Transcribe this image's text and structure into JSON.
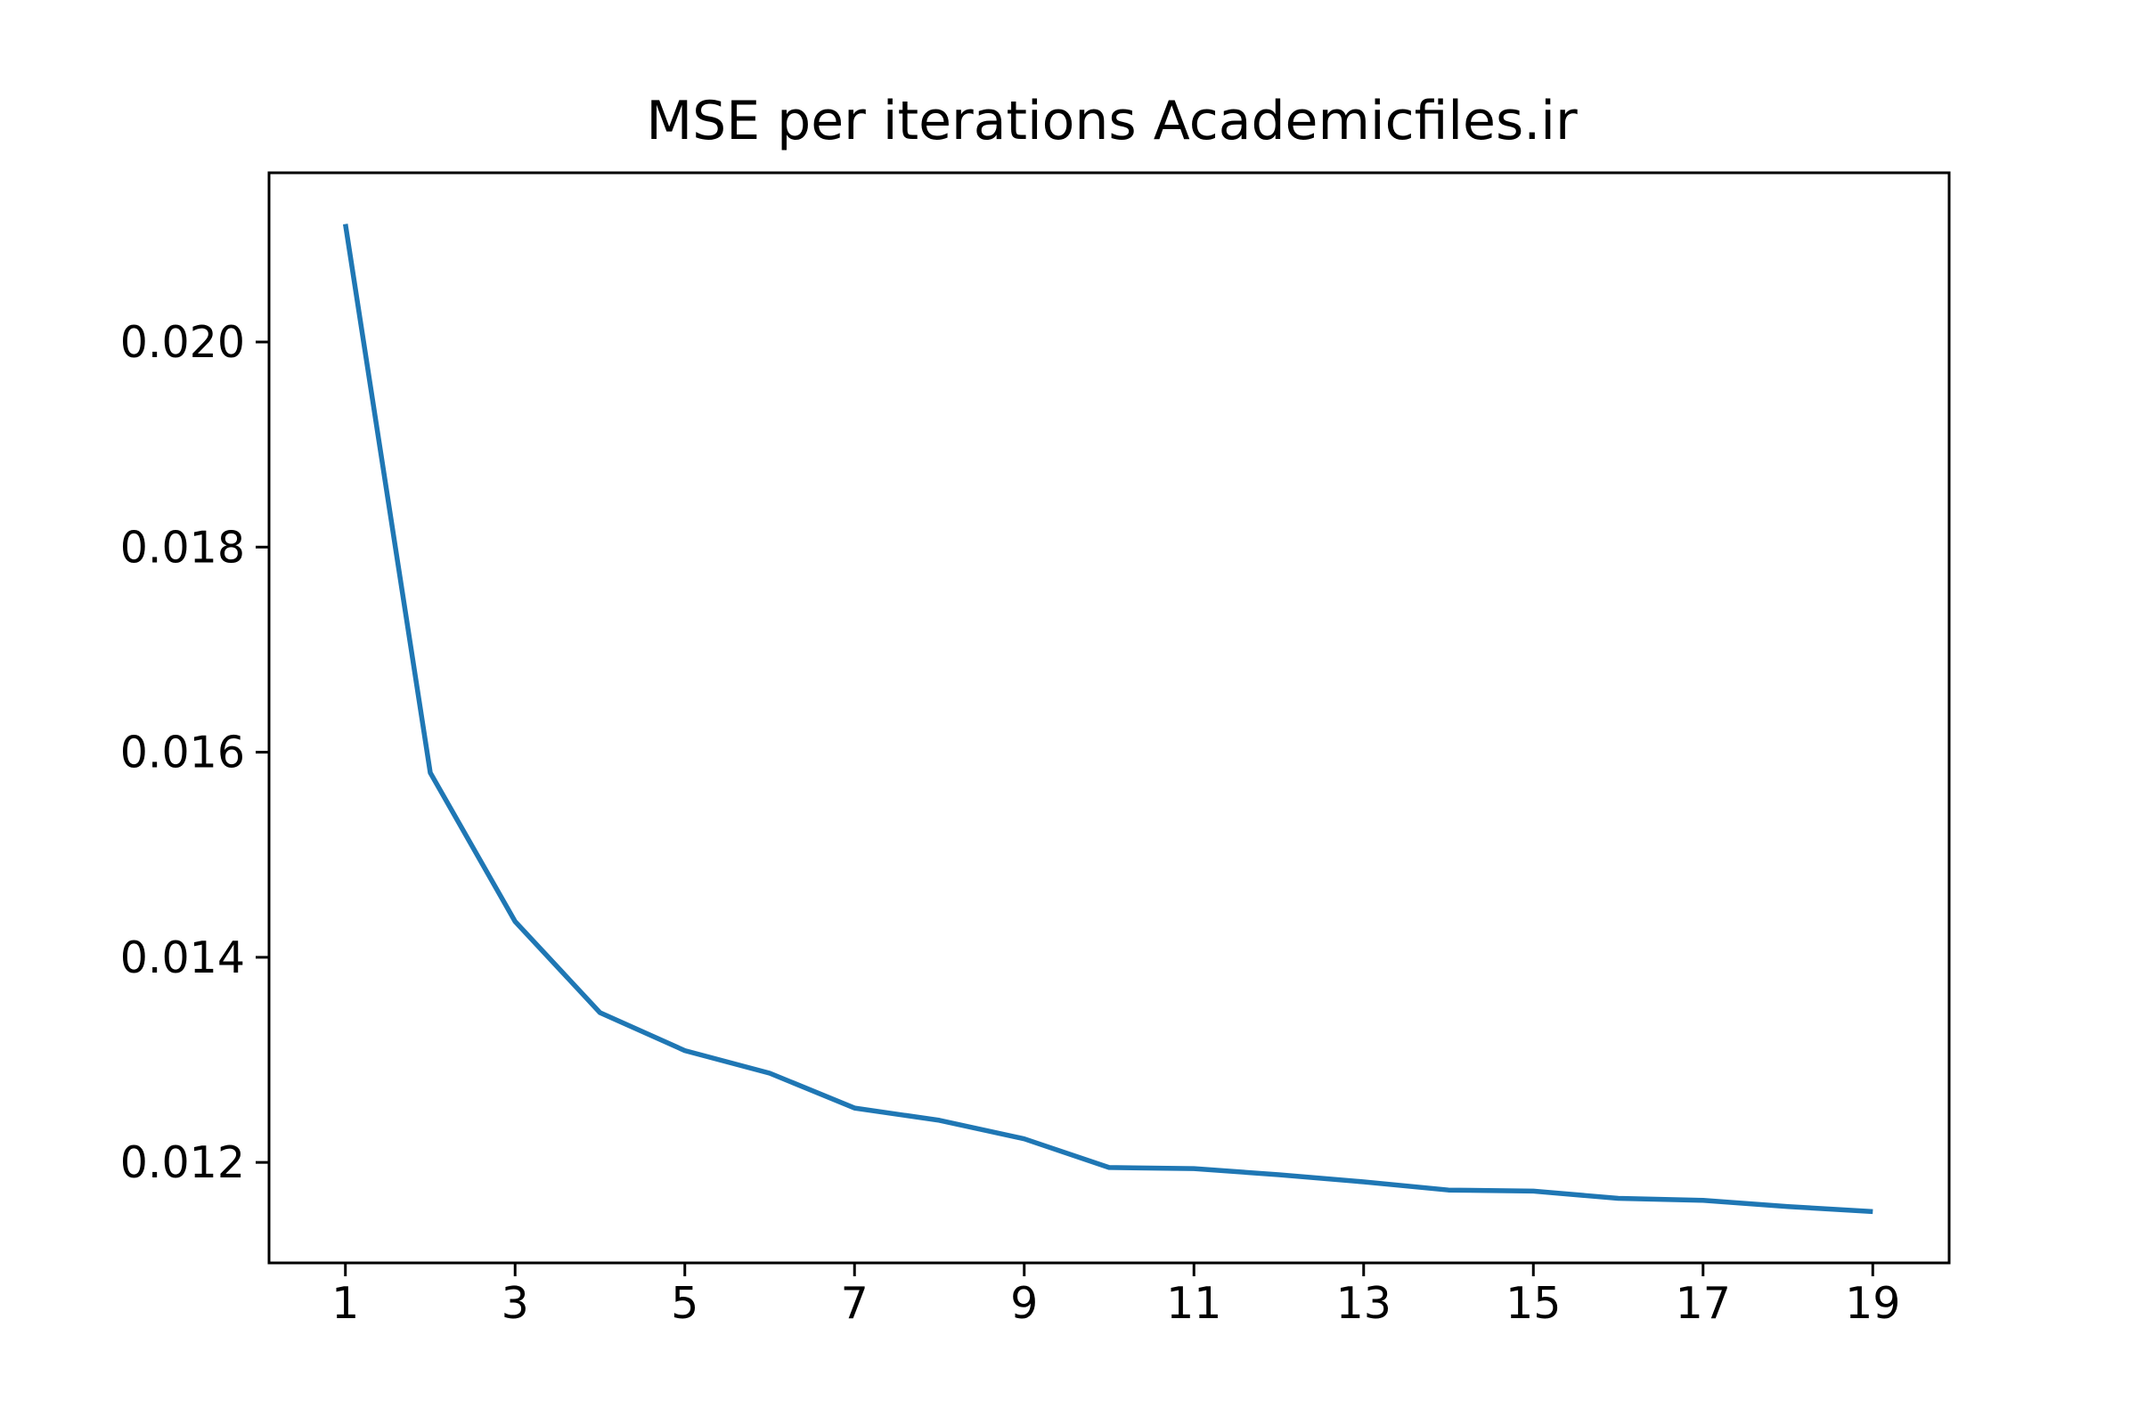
{
  "chart_data": {
    "type": "line",
    "title": "MSE per iterations Academicfiles.ir",
    "xlabel": "",
    "ylabel": "",
    "x": [
      1,
      2,
      3,
      4,
      5,
      6,
      7,
      8,
      9,
      10,
      11,
      12,
      13,
      14,
      15,
      16,
      17,
      18,
      19
    ],
    "series": [
      {
        "values": [
          0.02115,
          0.0158,
          0.01435,
          0.01346,
          0.01309,
          0.01287,
          0.01253,
          0.01241,
          0.01223,
          0.01195,
          0.01194,
          0.01188,
          0.01181,
          0.01173,
          0.01172,
          0.01165,
          0.01163,
          0.01157,
          0.01152
        ],
        "color": "#1f77b4"
      }
    ],
    "xticks": [
      1,
      3,
      5,
      7,
      9,
      11,
      13,
      15,
      17,
      19
    ],
    "yticks": [
      0.012,
      0.014,
      0.016,
      0.018,
      0.02
    ],
    "ytick_labels": [
      "0.012",
      "0.014",
      "0.016",
      "0.018",
      "0.020"
    ],
    "xlim": [
      0.1,
      19.9
    ],
    "ylim": [
      0.01102,
      0.02165
    ],
    "grid": false,
    "legend": "none"
  }
}
